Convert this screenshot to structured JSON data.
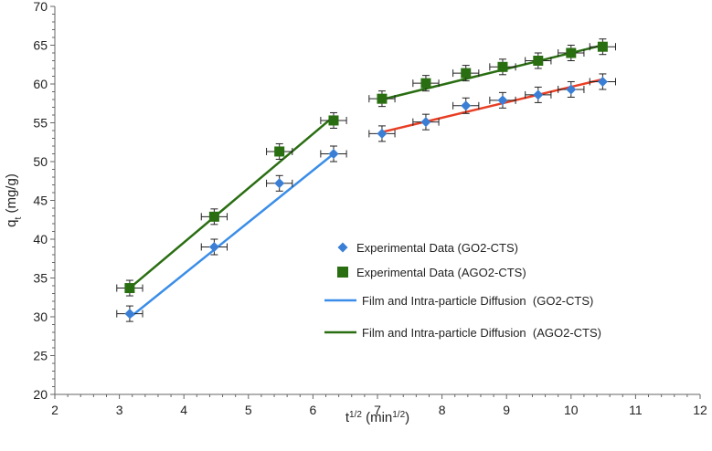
{
  "chart_data": {
    "type": "scatter",
    "title": "",
    "xlabel": {
      "base": "t",
      "sup": "1/2",
      "unit_pre": " (min",
      "unit_sup": "1/2",
      "unit_post": ")"
    },
    "ylabel": {
      "base": "q",
      "sub": "t",
      "rest": " (mg/g)"
    },
    "xlim": [
      2,
      12
    ],
    "ylim": [
      20,
      70
    ],
    "xticks": [
      2,
      3,
      4,
      5,
      6,
      7,
      8,
      9,
      10,
      11,
      12
    ],
    "yticks": [
      20,
      25,
      30,
      35,
      40,
      45,
      50,
      55,
      60,
      65,
      70
    ],
    "grid": false,
    "legend_position": "center-right",
    "series": [
      {
        "name": "Experimental Data (GO2-CTS)",
        "marker": "diamond",
        "color": "#3a7fd5",
        "x": [
          3.16,
          4.47,
          5.48,
          6.32,
          7.07,
          7.75,
          8.37,
          8.94,
          9.49,
          10.0,
          10.49
        ],
        "y": [
          30.4,
          39.0,
          47.2,
          51.0,
          53.6,
          55.1,
          57.2,
          57.9,
          58.6,
          59.3,
          60.3
        ],
        "xerr": 0.2,
        "yerr": 1.0
      },
      {
        "name": "Experimental Data (AGO2-CTS)",
        "marker": "square",
        "color": "#2a6e12",
        "x": [
          3.16,
          4.47,
          5.48,
          6.32,
          7.07,
          7.75,
          8.37,
          8.94,
          9.49,
          10.0,
          10.49
        ],
        "y": [
          33.7,
          42.9,
          51.3,
          55.3,
          58.1,
          60.1,
          61.4,
          62.2,
          63.0,
          64.0,
          64.8
        ],
        "xerr": 0.2,
        "yerr": 1.0
      },
      {
        "name": "Film and Intra-particle Diffusion  (GO2-CTS)",
        "type": "line",
        "color": "#3a8de8",
        "x": [
          3.16,
          6.32
        ],
        "y": [
          29.9,
          51.0
        ]
      },
      {
        "name": "Film and Intra-particle Diffusion  (AGO2-CTS)",
        "type": "line",
        "color": "#2a6e12",
        "x": [
          3.16,
          6.32
        ],
        "y": [
          33.7,
          55.8
        ]
      },
      {
        "name": "",
        "type": "line",
        "color": "#2a6e12",
        "x": [
          7.07,
          10.49
        ],
        "y": [
          58.0,
          65.0
        ]
      },
      {
        "name": "",
        "type": "line",
        "color": "#e83e24",
        "x": [
          7.07,
          10.49
        ],
        "y": [
          53.8,
          60.6
        ]
      }
    ]
  }
}
